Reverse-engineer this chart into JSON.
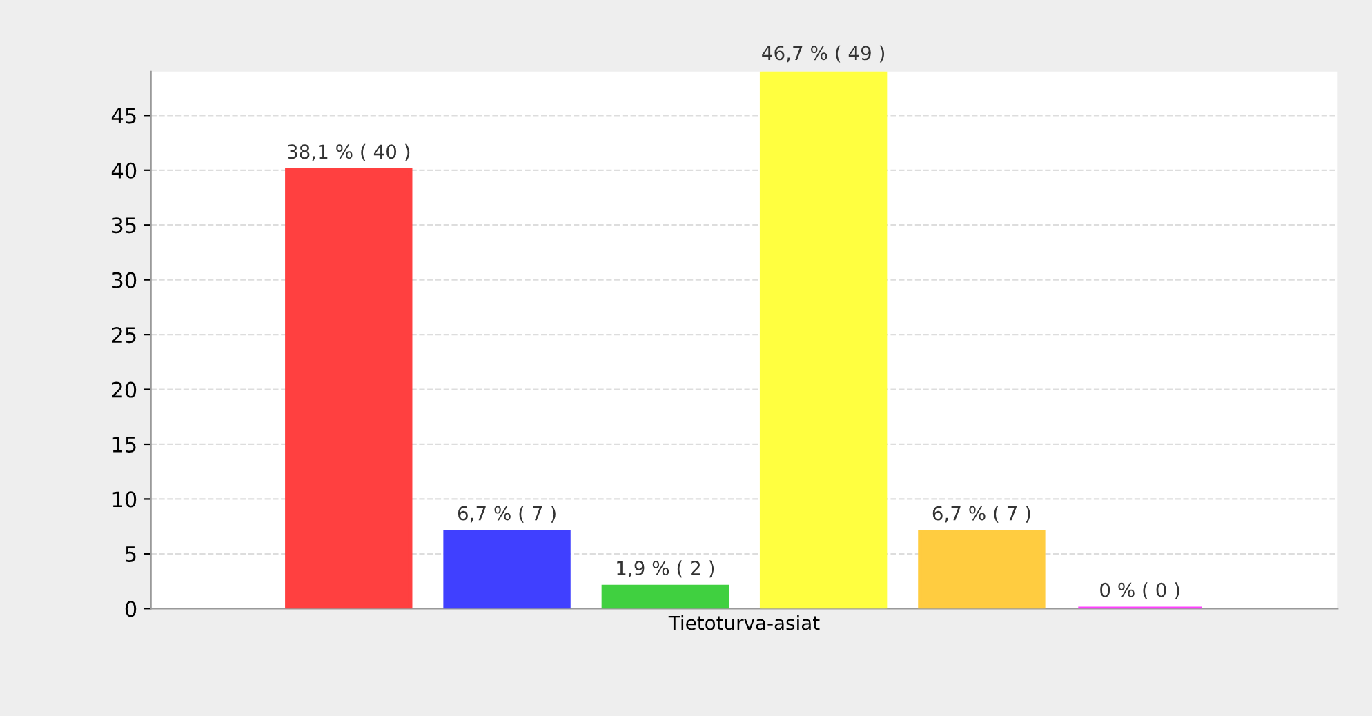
{
  "chart_data": {
    "type": "bar",
    "categories": [
      "Tietoturva-asiat"
    ],
    "series": [
      {
        "color": "#ff4040",
        "values": [
          40
        ],
        "value_labels": [
          "38,1 % ( 40 )"
        ]
      },
      {
        "color": "#4040ff",
        "values": [
          7
        ],
        "value_labels": [
          "6,7 % ( 7 )"
        ]
      },
      {
        "color": "#40d040",
        "values": [
          2
        ],
        "value_labels": [
          "1,9 % ( 2 )"
        ]
      },
      {
        "color": "#ffff40",
        "values": [
          49
        ],
        "value_labels": [
          "46,7 % ( 49 )"
        ]
      },
      {
        "color": "#ffcc40",
        "values": [
          7
        ],
        "value_labels": [
          "6,7 % ( 7 )"
        ]
      },
      {
        "color": "#ff40ff",
        "values": [
          0
        ],
        "value_labels": [
          "0 % ( 0 )"
        ]
      }
    ],
    "ylim": [
      0,
      49
    ],
    "yticks": [
      0,
      5,
      10,
      15,
      20,
      25,
      30,
      35,
      40,
      45
    ],
    "grid": "y"
  }
}
